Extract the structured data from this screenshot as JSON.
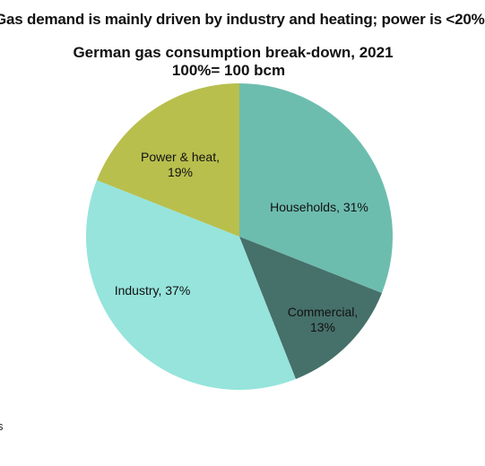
{
  "headline": "Gas demand is mainly driven by industry and heating; power is <20%",
  "footnote": "s",
  "chart_data": {
    "type": "pie",
    "title": "German gas consumption break-down, 2021",
    "subtitle": "100%= 100 bcm",
    "slices": [
      {
        "label": "Households, 31%",
        "value": 31,
        "color": "#6dbdaf"
      },
      {
        "label": "Commercial,",
        "label2": "13%",
        "value": 13,
        "color": "#46706a"
      },
      {
        "label": "Industry, 37%",
        "value": 37,
        "color": "#96e4dc"
      },
      {
        "label": "Power & heat,",
        "label2": "19%",
        "value": 19,
        "color": "#b8bf4d"
      }
    ]
  }
}
